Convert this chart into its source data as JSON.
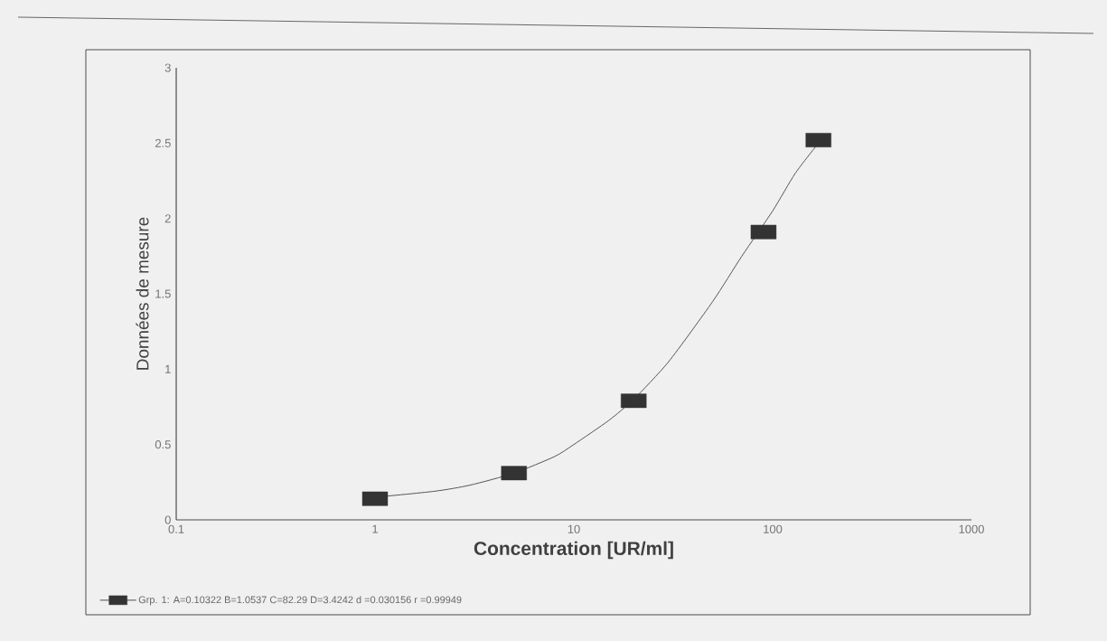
{
  "chart_data": {
    "type": "scatter",
    "xlabel": "Concentration [UR/ml]",
    "ylabel": "Données de mesure",
    "log": "x",
    "xlim": [
      0.1,
      1000
    ],
    "ylim": [
      0,
      3
    ],
    "xticks": [
      0.1,
      1,
      10,
      100,
      1000
    ],
    "yticks": [
      0,
      0.5,
      1,
      1.5,
      2,
      2.5,
      3
    ],
    "grid": false,
    "legend": "bottom",
    "series": [
      {
        "name": "Grp. 1: A=0.10322 B=1.0537 C=82.29 D=3.4242  d =0.030156  r =0.99949",
        "color": "#333333",
        "marker": "square",
        "x": [
          1,
          5,
          20,
          90,
          170
        ],
        "values": [
          0.14,
          0.31,
          0.79,
          1.91,
          2.52
        ]
      },
      {
        "type": "line",
        "color": "#555555",
        "marker": "none",
        "x": [
          1,
          2,
          3,
          5,
          8,
          10,
          15,
          20,
          30,
          50,
          70,
          100,
          130,
          170
        ],
        "values": [
          0.15,
          0.19,
          0.23,
          0.31,
          0.42,
          0.5,
          0.66,
          0.8,
          1.05,
          1.45,
          1.75,
          2.05,
          2.3,
          2.5
        ]
      }
    ]
  }
}
